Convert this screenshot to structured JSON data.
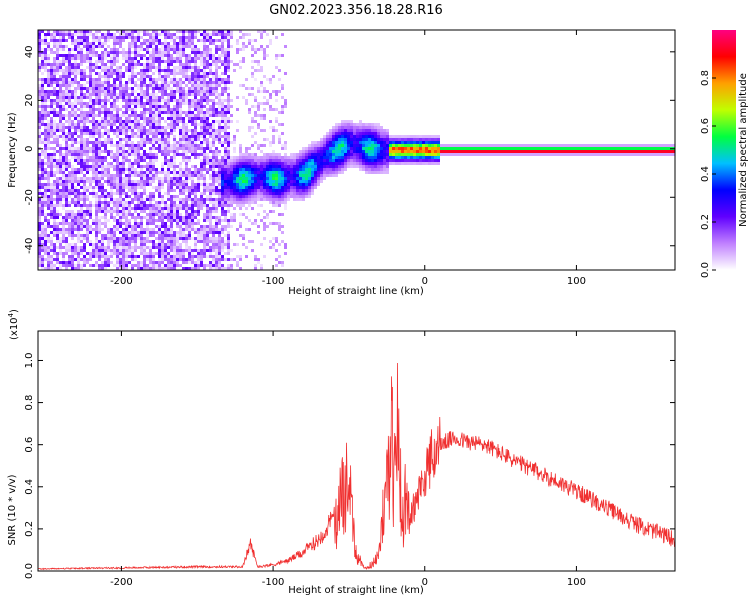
{
  "chart_data": [
    {
      "type": "heatmap",
      "title": "GN02.2023.356.18.28.R16",
      "xlabel": "Height of straight line (km)",
      "ylabel": "Frequency (Hz)",
      "xlim": [
        -255,
        165
      ],
      "ylim": [
        -50,
        49
      ],
      "xticks": [
        -200,
        -100,
        0,
        100
      ],
      "xtick_labels": [
        "-200",
        "-100",
        "0",
        "100"
      ],
      "yticks": [
        -40,
        -20,
        0,
        20,
        40
      ],
      "ytick_labels": [
        "-40",
        "-20",
        "0",
        "20",
        "40"
      ],
      "colorbar": {
        "label": "Normalized spectral amplitude",
        "range": [
          0,
          1
        ],
        "ticks": [
          0,
          0.2,
          0.4,
          0.6,
          0.8
        ],
        "tick_labels": [
          "0.0",
          "0.2",
          "0.4",
          "0.6",
          "0.8"
        ],
        "colormap": [
          "#ffffff",
          "#c080ff",
          "#6000ff",
          "#0000ff",
          "#00c0ff",
          "#00ff40",
          "#c0ff00",
          "#ffa000",
          "#ff0000",
          "#ff0080"
        ]
      },
      "ridge": {
        "description_points_height_km": [
          -130,
          -110,
          -95,
          -80,
          -65,
          -50,
          -40,
          -30,
          -20,
          -10,
          0,
          10,
          165
        ],
        "frequency_hz": [
          -13,
          -11,
          -12,
          -10,
          -2,
          3,
          1,
          0,
          0,
          0,
          0,
          0,
          0
        ]
      }
    },
    {
      "type": "line",
      "xlabel": "Height of straight line (km)",
      "ylabel": "SNR (10 * v/v)",
      "yscale_label": "(x10",
      "yscale_exp": "4",
      "xlim": [
        -255,
        165
      ],
      "ylim": [
        0,
        1.14
      ],
      "xticks": [
        -200,
        -100,
        0,
        100
      ],
      "xtick_labels": [
        "-200",
        "-100",
        "0",
        "100"
      ],
      "yticks": [
        0,
        0.2,
        0.4,
        0.6,
        0.8,
        1.0
      ],
      "ytick_labels": [
        "0.0",
        "0.2",
        "0.4",
        "0.6",
        "0.8",
        "1.0"
      ],
      "series": [
        {
          "name": "SNR",
          "color": "#f03030",
          "x": [
            -255,
            -200,
            -150,
            -120,
            -115,
            -110,
            -100,
            -90,
            -80,
            -70,
            -60,
            -55,
            -52,
            -50,
            -48,
            -45,
            -40,
            -35,
            -30,
            -28,
            -25,
            -22,
            -20,
            -18,
            -15,
            -12,
            -10,
            -5,
            0,
            5,
            10,
            15,
            20,
            25,
            30,
            40,
            50,
            60,
            80,
            100,
            120,
            140,
            165
          ],
          "y": [
            0.01,
            0.015,
            0.02,
            0.02,
            0.13,
            0.02,
            0.03,
            0.05,
            0.09,
            0.15,
            0.25,
            0.45,
            0.55,
            0.6,
            0.35,
            0.1,
            0.02,
            0.04,
            0.12,
            0.3,
            0.6,
            0.9,
            0.5,
            1.0,
            0.3,
            0.5,
            0.25,
            0.35,
            0.45,
            0.55,
            0.6,
            0.62,
            0.63,
            0.62,
            0.61,
            0.6,
            0.56,
            0.52,
            0.45,
            0.38,
            0.3,
            0.22,
            0.15
          ]
        }
      ]
    }
  ]
}
